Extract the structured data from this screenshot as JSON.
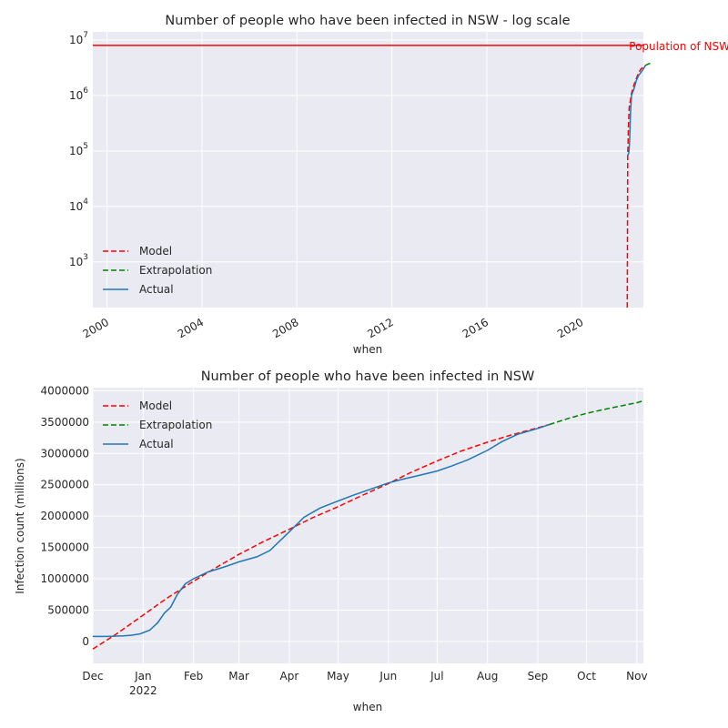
{
  "chart_data": [
    {
      "type": "line",
      "title": "Number of people who have been infected in NSW - log scale",
      "xlabel": "when",
      "ylabel": "",
      "yscale": "log",
      "ylim": [
        150,
        14000000
      ],
      "xlim": [
        1999.4,
        2022.6
      ],
      "x_ticks": [
        "2000",
        "2004",
        "2008",
        "2012",
        "2016",
        "2020"
      ],
      "x_tick_values": [
        2000,
        2004,
        2008,
        2012,
        2016,
        2020
      ],
      "y_ticks": [
        {
          "base": "10",
          "exp": "3",
          "value": 1000
        },
        {
          "base": "10",
          "exp": "4",
          "value": 10000
        },
        {
          "base": "10",
          "exp": "5",
          "value": 100000
        },
        {
          "base": "10",
          "exp": "6",
          "value": 1000000
        },
        {
          "base": "10",
          "exp": "7",
          "value": 10000000
        }
      ],
      "hline": {
        "value": 8000000,
        "label": "Population of NSW",
        "color": "#ff0000"
      },
      "grid": true,
      "legend": "lower-left",
      "series": [
        {
          "name": "Model",
          "style": "dashed",
          "color": "#ff0000",
          "x": [
            2021.92,
            2021.94,
            2021.97,
            2022.0,
            2022.1,
            2022.2,
            2022.3,
            2022.4,
            2022.5,
            2022.68
          ],
          "y": [
            150,
            80000,
            280000,
            600000,
            1100000,
            1550000,
            2000000,
            2550000,
            3000000,
            3450000
          ]
        },
        {
          "name": "Extrapolation",
          "style": "dashed",
          "color": "#008000",
          "x": [
            2022.68,
            2022.75,
            2022.83,
            2022.92
          ],
          "y": [
            3450000,
            3600000,
            3720000,
            3840000
          ]
        },
        {
          "name": "Actual",
          "style": "solid",
          "color": "#1f77b4",
          "x": [
            2021.92,
            2021.96,
            2021.99,
            2022.02,
            2022.06,
            2022.1,
            2022.2,
            2022.3,
            2022.4,
            2022.5,
            2022.6,
            2022.68
          ],
          "y": [
            80000,
            85000,
            95000,
            150000,
            500000,
            1000000,
            1300000,
            1850000,
            2300000,
            2600000,
            3000000,
            3450000
          ]
        }
      ]
    },
    {
      "type": "line",
      "title": "Number of people who have been infected in NSW",
      "xlabel": "when",
      "ylabel": "Infection count (millions)",
      "ylim": [
        -350000,
        4050000
      ],
      "xlim": [
        "2021-12-01",
        "2022-11-05"
      ],
      "x_ticks": [
        "Dec",
        "Jan",
        "Feb",
        "Mar",
        "Apr",
        "May",
        "Jun",
        "Jul",
        "Aug",
        "Sep",
        "Oct",
        "Nov"
      ],
      "x_tick_days": [
        0,
        31,
        62,
        90,
        121,
        151,
        182,
        212,
        243,
        274,
        304,
        335
      ],
      "x_year_label": "2022",
      "y_ticks": [
        "0",
        "500000",
        "1000000",
        "1500000",
        "2000000",
        "2500000",
        "3000000",
        "3500000",
        "4000000"
      ],
      "y_tick_values": [
        0,
        500000,
        1000000,
        1500000,
        2000000,
        2500000,
        3000000,
        3500000,
        4000000
      ],
      "grid": true,
      "legend": "upper-left",
      "series": [
        {
          "name": "Model",
          "style": "dashed",
          "color": "#ff0000",
          "x": [
            "2021-12-01",
            "2021-12-15",
            "2022-01-01",
            "2022-01-15",
            "2022-02-01",
            "2022-02-15",
            "2022-03-01",
            "2022-03-15",
            "2022-04-01",
            "2022-04-15",
            "2022-05-01",
            "2022-05-15",
            "2022-06-01",
            "2022-06-15",
            "2022-07-01",
            "2022-07-15",
            "2022-08-01",
            "2022-08-15",
            "2022-09-01",
            "2022-09-08"
          ],
          "y": [
            -120000,
            110000,
            420000,
            680000,
            960000,
            1180000,
            1390000,
            1580000,
            1790000,
            1970000,
            2150000,
            2320000,
            2520000,
            2700000,
            2880000,
            3030000,
            3180000,
            3290000,
            3410000,
            3460000
          ]
        },
        {
          "name": "Extrapolation",
          "style": "dashed",
          "color": "#008000",
          "x": [
            "2022-09-08",
            "2022-09-20",
            "2022-10-01",
            "2022-10-15",
            "2022-11-01",
            "2022-11-05"
          ],
          "y": [
            3460000,
            3560000,
            3640000,
            3720000,
            3810000,
            3840000
          ]
        },
        {
          "name": "Actual",
          "style": "solid",
          "color": "#1f77b4",
          "x": [
            "2021-12-01",
            "2021-12-10",
            "2021-12-20",
            "2021-12-25",
            "2021-12-30",
            "2022-01-05",
            "2022-01-10",
            "2022-01-14",
            "2022-01-18",
            "2022-01-22",
            "2022-01-27",
            "2022-02-01",
            "2022-02-10",
            "2022-02-20",
            "2022-03-01",
            "2022-03-12",
            "2022-03-20",
            "2022-04-01",
            "2022-04-10",
            "2022-04-20",
            "2022-05-01",
            "2022-05-10",
            "2022-05-20",
            "2022-06-01",
            "2022-06-10",
            "2022-06-20",
            "2022-07-01",
            "2022-07-10",
            "2022-07-20",
            "2022-08-01",
            "2022-08-10",
            "2022-08-20",
            "2022-09-01",
            "2022-09-08"
          ],
          "y": [
            80000,
            80000,
            90000,
            100000,
            120000,
            180000,
            300000,
            450000,
            550000,
            750000,
            920000,
            1000000,
            1110000,
            1190000,
            1270000,
            1350000,
            1450000,
            1750000,
            1980000,
            2130000,
            2240000,
            2330000,
            2420000,
            2530000,
            2590000,
            2650000,
            2720000,
            2800000,
            2900000,
            3050000,
            3190000,
            3310000,
            3400000,
            3460000
          ]
        }
      ]
    }
  ]
}
